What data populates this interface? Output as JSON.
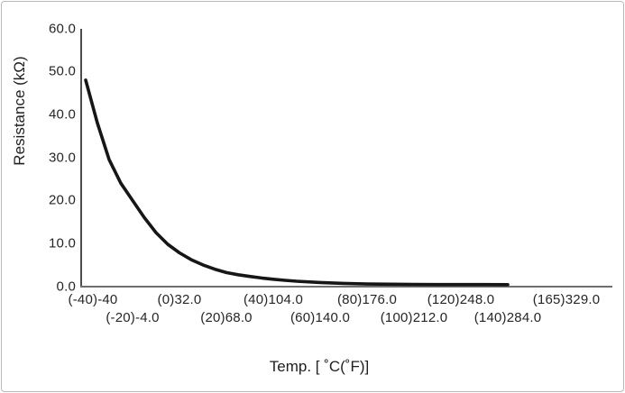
{
  "figure": {
    "y_axis_title": "Resistance (kΩ)",
    "x_axis_title": "Temp. [ ˚C(˚F)]"
  },
  "chart_data": {
    "type": "line",
    "title": "",
    "xlabel": "Temp. [ ˚C(˚F)]",
    "ylabel": "Resistance (kΩ)",
    "x_axis_note": "temperature shown as (°C)°F pairs, staggered in two rows",
    "xlim_celsius": [
      -40,
      165
    ],
    "ylim": [
      0,
      60
    ],
    "grid": false,
    "legend": "none",
    "line_color": "#161616",
    "axis_color": "#555555",
    "x": [
      -40,
      -35,
      -30,
      -25,
      -20,
      -15,
      -10,
      -5,
      0,
      5,
      10,
      15,
      20,
      25,
      30,
      35,
      40,
      45,
      50,
      60,
      70,
      80,
      90,
      100,
      110,
      120,
      130,
      140
    ],
    "y": [
      48,
      38,
      29.5,
      24,
      20,
      16,
      12.5,
      9.8,
      7.8,
      6.2,
      5.0,
      4.0,
      3.2,
      2.7,
      2.3,
      1.95,
      1.65,
      1.4,
      1.2,
      0.9,
      0.7,
      0.55,
      0.5,
      0.45,
      0.43,
      0.42,
      0.41,
      0.4
    ],
    "y_ticks": [
      {
        "label": "0.0",
        "value": 0
      },
      {
        "label": "10.0",
        "value": 10
      },
      {
        "label": "20.0",
        "value": 20
      },
      {
        "label": "30.0",
        "value": 30
      },
      {
        "label": "40.0",
        "value": 40
      },
      {
        "label": "50.0",
        "value": 50
      },
      {
        "label": "60.0",
        "value": 60
      }
    ],
    "x_ticks": [
      {
        "label": "(-40)-40",
        "celsius": -40,
        "row": 1
      },
      {
        "label": "(-20)-4.0",
        "celsius": -20,
        "row": 2
      },
      {
        "label": "(0)32.0",
        "celsius": 0,
        "row": 1
      },
      {
        "label": "(20)68.0",
        "celsius": 20,
        "row": 2
      },
      {
        "label": "(40)104.0",
        "celsius": 40,
        "row": 1
      },
      {
        "label": "(60)140.0",
        "celsius": 60,
        "row": 2
      },
      {
        "label": "(80)176.0",
        "celsius": 80,
        "row": 1
      },
      {
        "label": "(100)212.0",
        "celsius": 100,
        "row": 2
      },
      {
        "label": "(120)248.0",
        "celsius": 120,
        "row": 1
      },
      {
        "label": "(140)284.0",
        "celsius": 140,
        "row": 2
      },
      {
        "label": "(165)329.0",
        "celsius": 165,
        "row": 1
      }
    ]
  }
}
